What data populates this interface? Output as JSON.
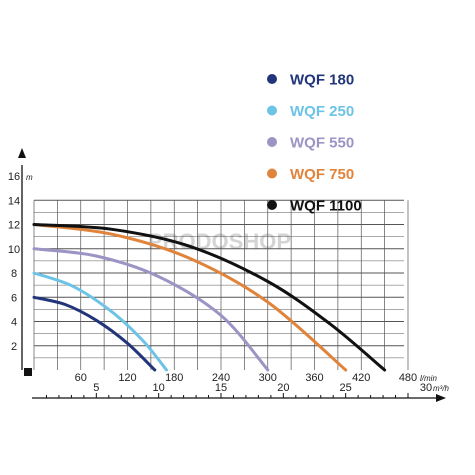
{
  "colors": {
    "WQF 180": "#22357a",
    "WQF 250": "#6cc3e6",
    "WQF 550": "#9b94c4",
    "WQF 750": "#e0833b",
    "WQF 1100": "#111111",
    "grid": "#555555",
    "axis": "#111111"
  },
  "watermark": "PRODOSHOP",
  "chart_data": {
    "type": "line",
    "grid": true,
    "legend_position": "top-right",
    "y_axis": {
      "label": "m",
      "ticks": [
        "2",
        "4",
        "6",
        "8",
        "10",
        "12",
        "14",
        "16"
      ],
      "ylim": [
        0,
        16
      ]
    },
    "x_axis": {
      "label": "l/min",
      "ticks": [
        "60",
        "120",
        "180",
        "240",
        "300",
        "360",
        "420",
        "480"
      ],
      "xlim": [
        0,
        480
      ]
    },
    "x2_axis": {
      "label": "m³/h",
      "ticks": [
        "5",
        "10",
        "15",
        "20",
        "25",
        "30"
      ],
      "xlim": [
        0,
        30
      ]
    },
    "series": [
      {
        "name": "WQF 180",
        "x": [
          0,
          40,
          80,
          120,
          155
        ],
        "y": [
          6,
          5.4,
          4.1,
          2.2,
          0
        ]
      },
      {
        "name": "WQF 250",
        "x": [
          0,
          50,
          100,
          140,
          170
        ],
        "y": [
          8,
          6.9,
          4.8,
          2.4,
          0
        ]
      },
      {
        "name": "WQF 550",
        "x": [
          0,
          80,
          160,
          240,
          300
        ],
        "y": [
          10,
          9.4,
          7.7,
          4.5,
          0
        ]
      },
      {
        "name": "WQF 750",
        "x": [
          0,
          100,
          200,
          300,
          400
        ],
        "y": [
          12,
          11.2,
          9.2,
          5.6,
          0
        ]
      },
      {
        "name": "WQF 1100",
        "x": [
          0,
          100,
          200,
          300,
          380,
          450
        ],
        "y": [
          12,
          11.6,
          10.2,
          7.3,
          3.8,
          0
        ]
      }
    ]
  }
}
